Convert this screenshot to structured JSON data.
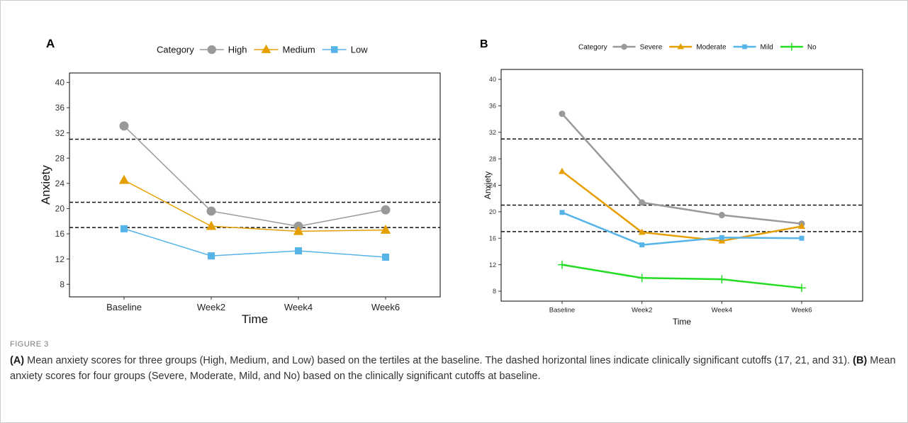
{
  "chart_data": [
    {
      "panel": "A",
      "type": "line",
      "xlabel": "Time",
      "ylabel": "Anxiety",
      "legend_title": "Category",
      "legend_position": "top",
      "categories": [
        "Baseline",
        "Week2",
        "Week4",
        "Week6"
      ],
      "yticks": [
        "8",
        "12",
        "16",
        "20",
        "24",
        "28",
        "32",
        "36",
        "40"
      ],
      "ylim": [
        6,
        41.5
      ],
      "reference_lines": [
        17,
        21,
        31
      ],
      "series": [
        {
          "name": "High",
          "values": [
            33.1,
            19.6,
            17.2,
            19.8
          ],
          "color": "#999999",
          "marker": "circle"
        },
        {
          "name": "Medium",
          "values": [
            24.5,
            17.2,
            16.4,
            16.6
          ],
          "color": "#E69F00",
          "marker": "triangle"
        },
        {
          "name": "Low",
          "values": [
            16.8,
            12.5,
            13.3,
            12.3
          ],
          "color": "#56B4E9",
          "marker": "square"
        }
      ]
    },
    {
      "panel": "B",
      "type": "line",
      "xlabel": "Time",
      "ylabel": "Anxiety",
      "legend_title": "Category",
      "legend_position": "top",
      "categories": [
        "Baseline",
        "Week2",
        "Week4",
        "Week6"
      ],
      "yticks": [
        "8",
        "12",
        "16",
        "20",
        "24",
        "28",
        "32",
        "36",
        "40"
      ],
      "ylim": [
        6.5,
        41.5
      ],
      "reference_lines": [
        17,
        21,
        31
      ],
      "series": [
        {
          "name": "Severe",
          "values": [
            34.8,
            21.4,
            19.5,
            18.2
          ],
          "color": "#999999",
          "marker": "circle"
        },
        {
          "name": "Moderate",
          "values": [
            26.1,
            16.9,
            15.6,
            17.8
          ],
          "color": "#E69F00",
          "marker": "triangle"
        },
        {
          "name": "Mild",
          "values": [
            19.9,
            15.0,
            16.1,
            16.0
          ],
          "color": "#56B4E9",
          "marker": "square"
        },
        {
          "name": "No",
          "values": [
            12.0,
            10.0,
            9.8,
            8.5
          ],
          "color": "#22DD22",
          "marker": "plus"
        }
      ]
    }
  ],
  "caption": {
    "figure_label": "FIGURE 3",
    "a_tag": "(A)",
    "a_text": " Mean anxiety scores for three groups (High, Medium, and Low) based on the tertiles at the baseline. The dashed horizontal lines indicate clinically significant cutoffs (17, 21, and 31). ",
    "b_tag": "(B)",
    "b_text": " Mean anxiety scores for four groups (Severe, Moderate, Mild, and No) based on the clinically significant cutoffs at baseline."
  }
}
